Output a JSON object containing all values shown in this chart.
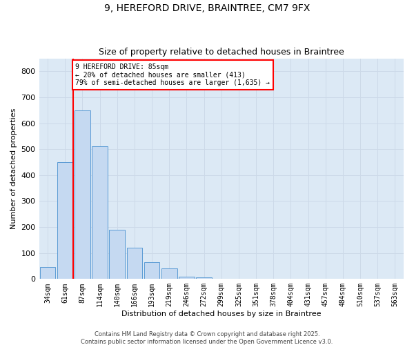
{
  "title_line1": "9, HEREFORD DRIVE, BRAINTREE, CM7 9FX",
  "title_line2": "Size of property relative to detached houses in Braintree",
  "xlabel": "Distribution of detached houses by size in Braintree",
  "ylabel": "Number of detached properties",
  "categories": [
    "34sqm",
    "61sqm",
    "87sqm",
    "114sqm",
    "140sqm",
    "166sqm",
    "193sqm",
    "219sqm",
    "246sqm",
    "272sqm",
    "299sqm",
    "325sqm",
    "351sqm",
    "378sqm",
    "404sqm",
    "431sqm",
    "457sqm",
    "484sqm",
    "510sqm",
    "537sqm",
    "563sqm"
  ],
  "bar_values": [
    45,
    450,
    650,
    510,
    190,
    120,
    65,
    40,
    10,
    5,
    2,
    1,
    0,
    0,
    0,
    0,
    0,
    0,
    0,
    0,
    0
  ],
  "bar_color": "#c5d9f1",
  "bar_edge_color": "#5b9bd5",
  "property_line_color": "#ff0000",
  "annotation_text": "9 HEREFORD DRIVE: 85sqm\n← 20% of detached houses are smaller (413)\n79% of semi-detached houses are larger (1,635) →",
  "annotation_box_color": "#ff0000",
  "ylim": [
    0,
    850
  ],
  "yticks": [
    0,
    100,
    200,
    300,
    400,
    500,
    600,
    700,
    800
  ],
  "grid_color": "#ccd9e8",
  "footer_line1": "Contains HM Land Registry data © Crown copyright and database right 2025.",
  "footer_line2": "Contains public sector information licensed under the Open Government Licence v3.0.",
  "background_color": "#dce9f5",
  "fig_width": 6.0,
  "fig_height": 5.0,
  "dpi": 100
}
